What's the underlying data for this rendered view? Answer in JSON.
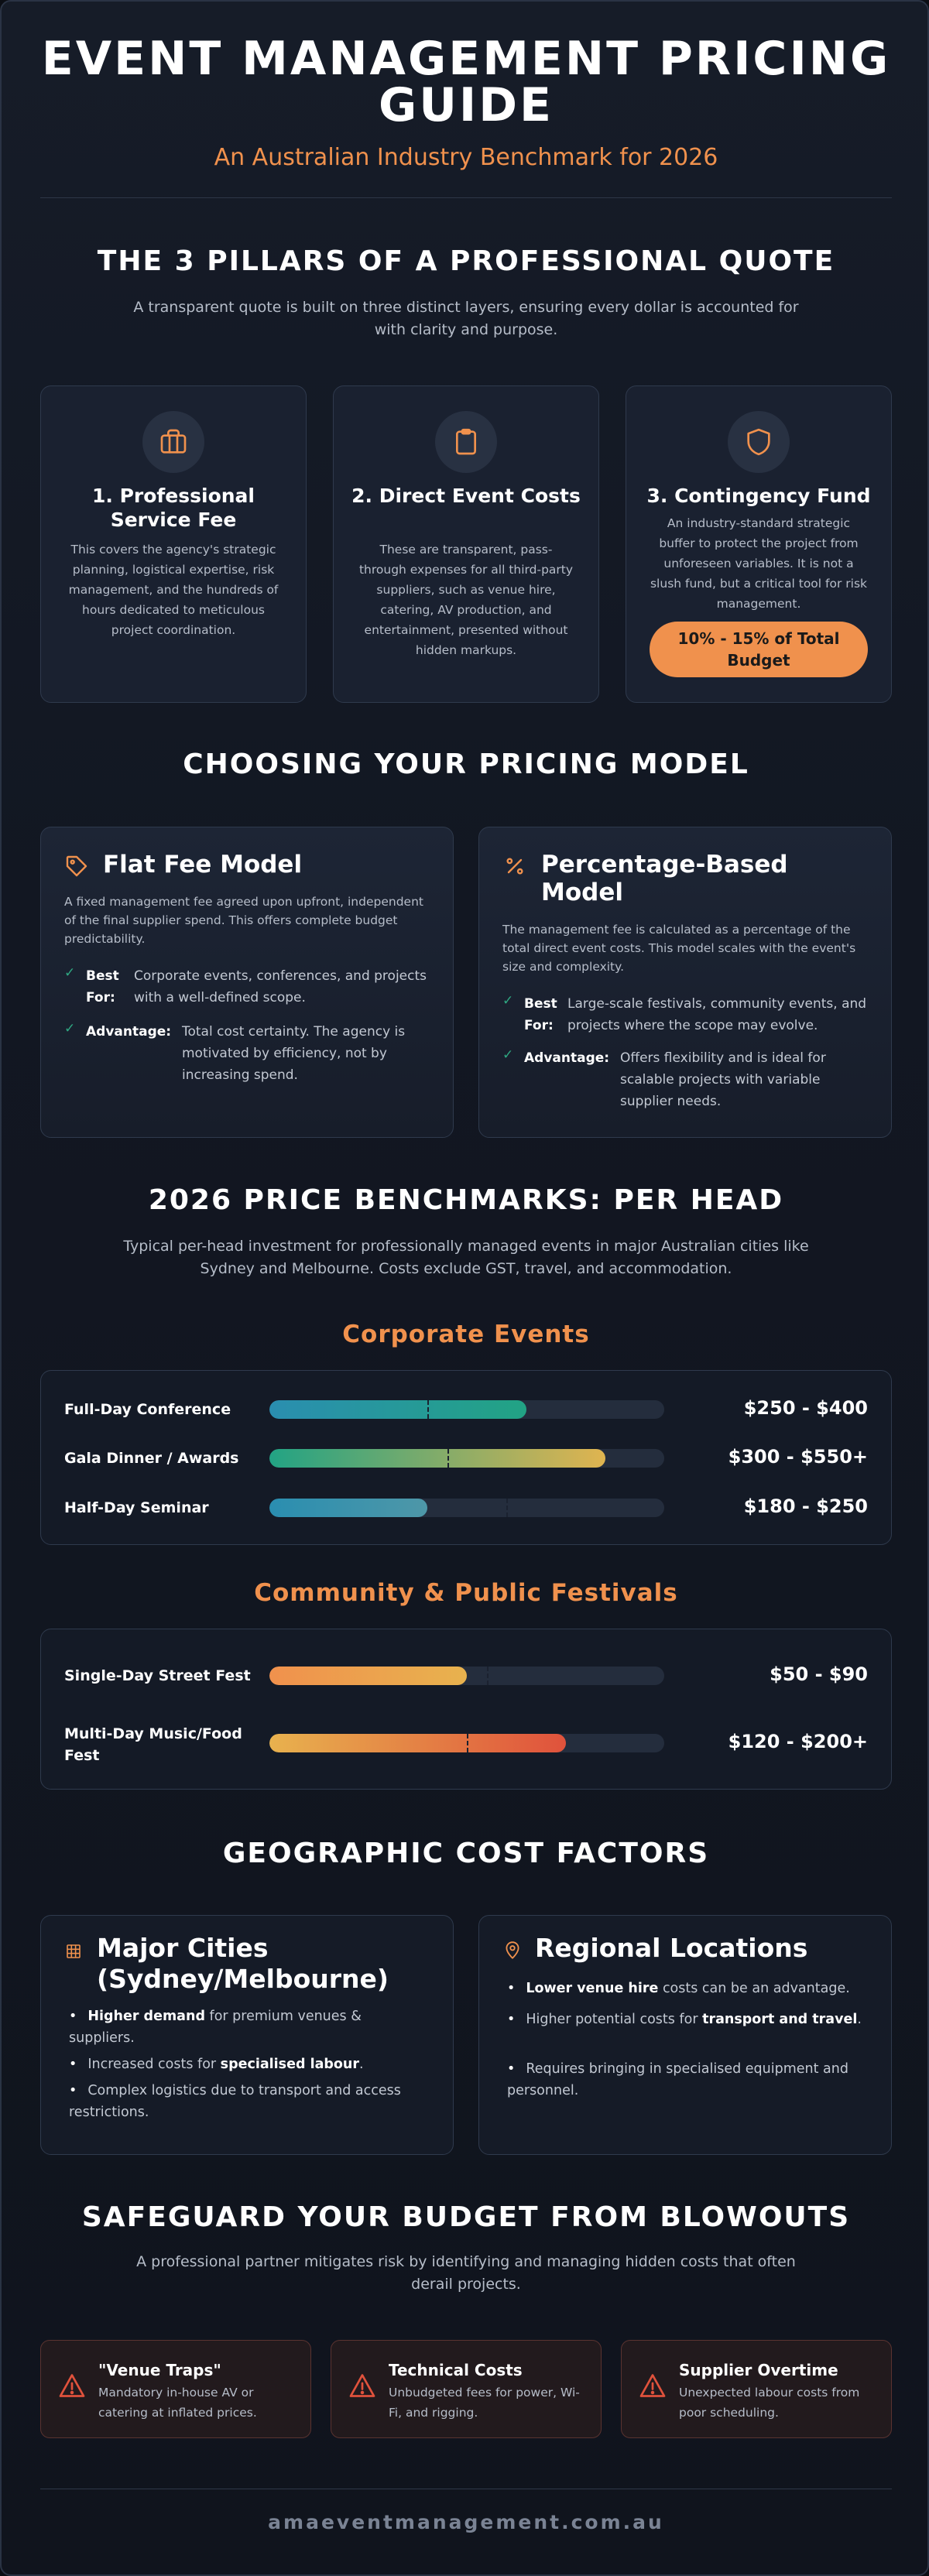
{
  "header": {
    "title": "EVENT MANAGEMENT PRICING GUIDE",
    "subtitle": "An Australian Industry Benchmark for 2026"
  },
  "pillars": {
    "title": "THE 3 PILLARS OF A PROFESSIONAL QUOTE",
    "description": "A transparent quote is built on three distinct layers, ensuring every dollar is accounted for with clarity and purpose.",
    "items": [
      {
        "icon": "briefcase-icon",
        "title": "1. Professional Service Fee",
        "text": "This covers the agency's strategic planning, logistical expertise, risk management, and the hundreds of hours dedicated to meticulous project coordination."
      },
      {
        "icon": "clipboard-icon",
        "title": "2. Direct Event Costs",
        "text": "These are transparent, pass-through expenses for all third-party suppliers, such as venue hire, catering, AV production, and entertainment, presented without hidden markups."
      },
      {
        "icon": "shield-icon",
        "title": "3. Contingency Fund",
        "text": "An industry-standard strategic buffer to protect the project from unforeseen variables. It is not a slush fund, but a critical tool for risk management.",
        "badge": "10% - 15% of Total Budget"
      }
    ]
  },
  "models": {
    "title": "CHOOSING YOUR PRICING MODEL",
    "items": [
      {
        "icon": "tag-icon",
        "title": "Flat Fee Model",
        "text": "A fixed management fee agreed upon upfront, independent of the final supplier spend. This offers complete budget predictability.",
        "best_label": "Best For:",
        "best_text": "Corporate events, conferences, and projects with a well-defined scope.",
        "adv_label": "Advantage:",
        "adv_text": "Total cost certainty. The agency is motivated by efficiency, not by increasing spend."
      },
      {
        "icon": "percent-icon",
        "title": "Percentage-Based Model",
        "text": "The management fee is calculated as a percentage of the total direct event costs. This model scales with the event's size and complexity.",
        "best_label": "Best For:",
        "best_text": "Large-scale festivals, community events, and projects where the scope may evolve.",
        "adv_label": "Advantage:",
        "adv_text": "Offers flexibility and is ideal for scalable projects with variable supplier needs."
      }
    ]
  },
  "benchmarks": {
    "title": "2026 PRICE BENCHMARKS: PER HEAD",
    "description": "Typical per-head investment for professionally managed events in major Australian cities like Sydney and Melbourne. Costs exclude GST, travel, and accommodation.",
    "corporate": {
      "title": "Corporate Events",
      "rows": [
        {
          "label": "Full-Day Conference",
          "value": "$250 - $400",
          "fill": 0.65,
          "tick": 0.4,
          "colors": [
            "#2a8eb0",
            "#22a384"
          ]
        },
        {
          "label": "Gala Dinner / Awards",
          "value": "$300 - $550+",
          "fill": 0.85,
          "tick": 0.45,
          "colors": [
            "#22a384",
            "#e0b450"
          ]
        },
        {
          "label": "Half-Day Seminar",
          "value": "$180 - $250",
          "fill": 0.4,
          "tick": 0.6,
          "colors": [
            "#2a8eb0",
            "#4e97a8"
          ]
        }
      ]
    },
    "community": {
      "title": "Community & Public Festivals",
      "rows": [
        {
          "label": "Single-Day Street Fest",
          "value": "$50 - $90",
          "fill": 0.5,
          "tick": 0.55,
          "colors": [
            "#f0914d",
            "#e8b24e"
          ]
        },
        {
          "label": "Multi-Day Music/Food Fest",
          "value": "$120 - $200+",
          "fill": 0.75,
          "tick": 0.5,
          "colors": [
            "#e8b24e",
            "#e0523c"
          ]
        }
      ]
    }
  },
  "geo": {
    "title": "GEOGRAPHIC COST FACTORS",
    "major": {
      "icon": "city-grid-icon",
      "title": "Major Cities (Sydney/Melbourne)",
      "items": [
        {
          "bold": "Higher demand",
          "rest": " for premium venues & suppliers."
        },
        {
          "pre": "Increased costs for ",
          "bold": "specialised labour",
          "post": "."
        },
        {
          "rest": "Complex logistics due to transport and access restrictions."
        }
      ]
    },
    "regional": {
      "icon": "location-pin-icon",
      "title": "Regional Locations",
      "items": [
        {
          "bold": "Lower venue hire",
          "rest": " costs can be an advantage."
        },
        {
          "pre": "Higher potential costs for ",
          "bold": "transport and travel",
          "post": "."
        },
        {
          "rest": "Requires bringing in specialised equipment and personnel."
        }
      ]
    }
  },
  "safeguard": {
    "title": "SAFEGUARD YOUR BUDGET FROM BLOWOUTS",
    "description": "A professional partner mitigates risk by identifying and managing hidden costs that often derail projects.",
    "items": [
      {
        "title": "\"Venue Traps\"",
        "text": "Mandatory in-house AV or catering at inflated prices."
      },
      {
        "title": "Technical Costs",
        "text": "Unbudgeted fees for power, Wi-Fi, and rigging."
      },
      {
        "title": "Supplier Overtime",
        "text": "Unexpected labour costs from poor scheduling."
      }
    ]
  },
  "footer": {
    "domain": "amaeventmanagement.com.au"
  },
  "colors": {
    "accent": "#f0914d",
    "check": "#2fa882",
    "warning": "#e0523c"
  }
}
